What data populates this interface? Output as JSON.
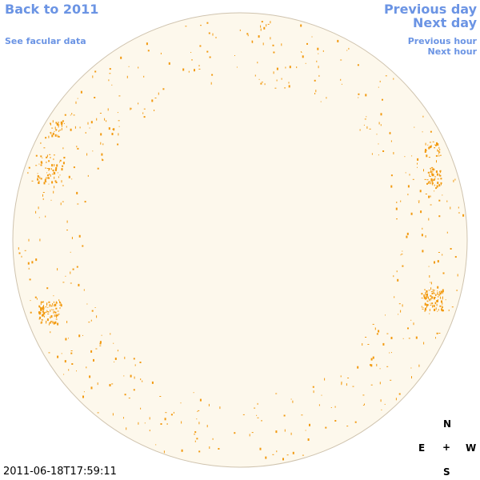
{
  "nav": {
    "back_label": "Back to 2011",
    "facular_label": "See facular data",
    "prev_day_label": "Previous day",
    "next_day_label": "Next day",
    "prev_hour_label": "Previous hour",
    "next_hour_label": "Next hour"
  },
  "compass": {
    "north": "N",
    "south": "S",
    "east": "E",
    "west": "W",
    "center": "+"
  },
  "timestamp": "2011-06-18T17:59:11",
  "colors": {
    "link": "#6b94e4",
    "disk_fill": "#fdf8ec",
    "disk_edge": "#cfc3ae",
    "facula": "#f29a10"
  }
}
